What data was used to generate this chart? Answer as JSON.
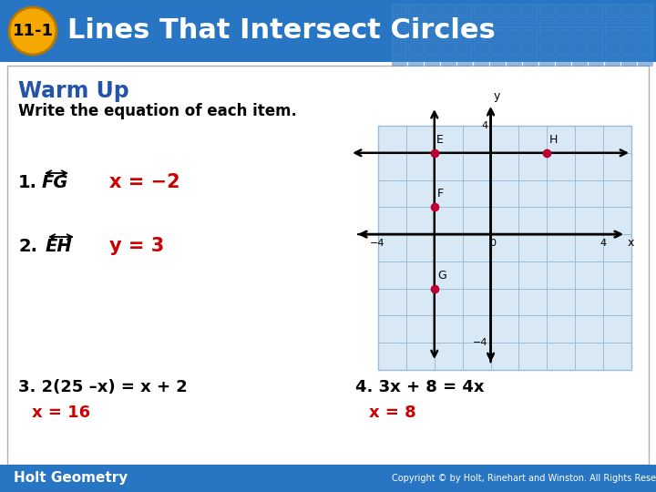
{
  "title_text": "Lines That Intersect Circles",
  "title_bg": "#2875c3",
  "title_text_color": "#ffffff",
  "badge_color": "#f5a800",
  "badge_outline": "#b87800",
  "badge_text": "11-1",
  "warm_up_text": "Warm Up",
  "warm_up_color": "#2255aa",
  "subtitle": "Write the equation of each item.",
  "subtitle_color": "#000000",
  "item1_answer": "x = −2",
  "item2_answer": "y = 3",
  "item3_eq": "2(25 –x) = x + 2",
  "item3_ans": "x = 16",
  "item4_eq": "3x + 8 = 4x",
  "item4_ans": "x = 8",
  "answer_color": "#cc0000",
  "footer_text": "Holt Geometry",
  "footer_bg": "#2875c3",
  "grid_bg": "#d8e8f5",
  "dot_color": "#bb0033",
  "content_bg": "#ffffff",
  "border_color": "#b0b0b0",
  "grid_line_color": "#9bbcd8",
  "header_tile_color": "#3a80c8",
  "header_tile_edge": "#5090d8"
}
